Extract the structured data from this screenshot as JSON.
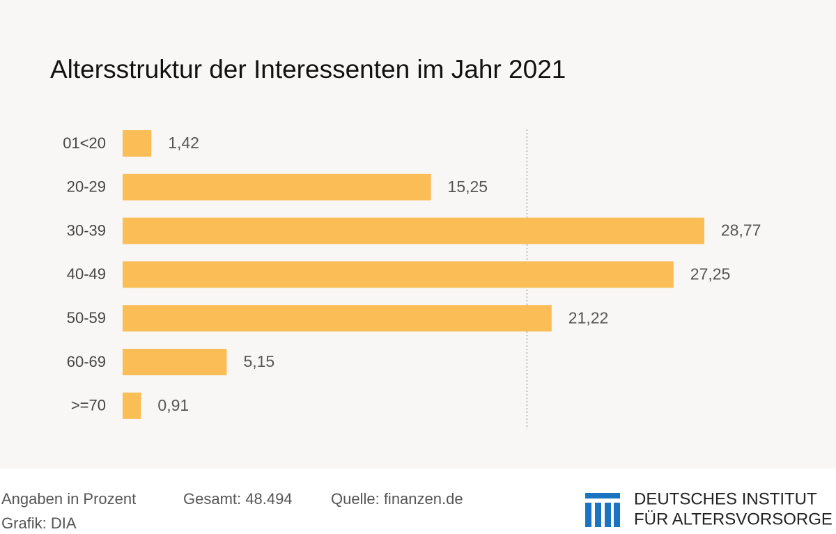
{
  "chart_data": {
    "type": "bar",
    "orientation": "horizontal",
    "title": "Altersstruktur der Interessenten im Jahr 2021",
    "categories": [
      "01<20",
      "20-29",
      "30-39",
      "40-49",
      "50-59",
      "60-69",
      ">=70"
    ],
    "values": [
      1.42,
      15.25,
      28.77,
      27.25,
      21.22,
      5.15,
      0.91
    ],
    "value_labels": [
      "1,42",
      "15,25",
      "28,77",
      "27,25",
      "21,22",
      "5,15",
      "0,91"
    ],
    "color": "#fbbd55",
    "xlim": [
      0,
      30
    ],
    "reference_line": 20
  },
  "footer": {
    "unit": "Angaben in Prozent",
    "total": "Gesamt: 48.494",
    "source": "Quelle: finanzen.de",
    "credit": "Grafik: DIA"
  },
  "logo": {
    "line1": "DEUTSCHES INSTITUT",
    "line2": "FÜR ALTERSVORSORGE"
  }
}
